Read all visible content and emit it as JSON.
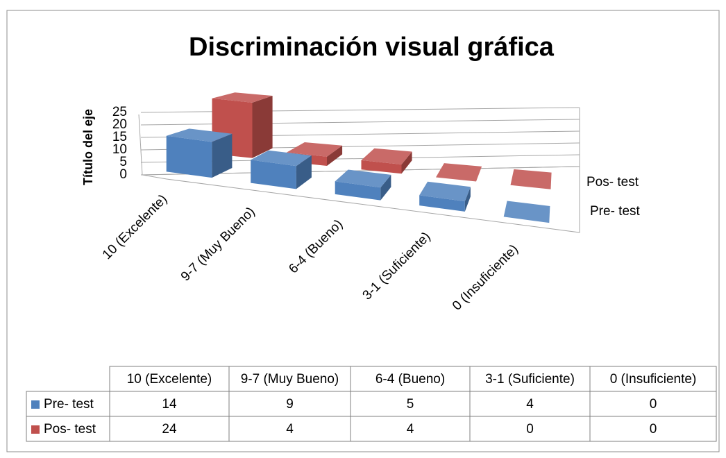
{
  "chart_data": {
    "type": "bar3d",
    "title": "Discriminación visual gráfica",
    "y_axis_label": "Título del eje",
    "categories": [
      "10 (Excelente)",
      "9-7 (Muy Bueno)",
      "6-4 (Bueno)",
      "3-1 (Suficiente)",
      "0 (Insuficiente)"
    ],
    "series": [
      {
        "name": "Pre- test",
        "color": "#4f81bd",
        "values": [
          14,
          9,
          5,
          4,
          0
        ]
      },
      {
        "name": "Pos- test",
        "color": "#c0504d",
        "values": [
          24,
          4,
          4,
          0,
          0
        ]
      }
    ],
    "ylim": [
      0,
      25
    ],
    "yticks": [
      0,
      5,
      10,
      15,
      20,
      25
    ],
    "grid": true,
    "data_table": true
  }
}
